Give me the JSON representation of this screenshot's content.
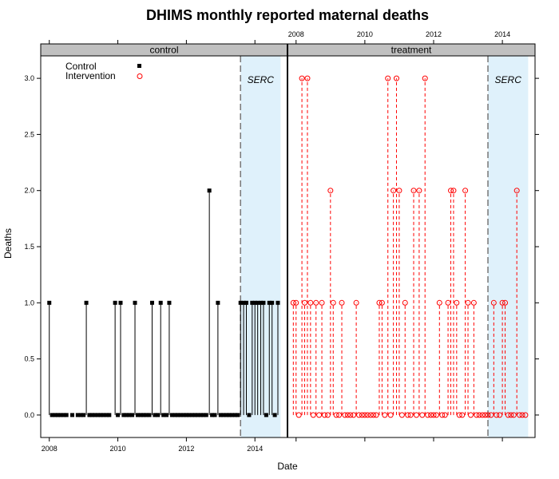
{
  "chart_data": {
    "type": "scatter",
    "title": "DHIMS monthly reported maternal deaths",
    "xlabel": "Date",
    "ylabel": "Deaths",
    "x_unit": "year",
    "xlim": [
      2007.75,
      2014.95
    ],
    "ylim": [
      -0.2,
      3.2
    ],
    "x_ticks": [
      2008,
      2010,
      2012,
      2014
    ],
    "x_tick_labels": [
      "2008",
      "2010",
      "2012",
      "2014"
    ],
    "y_ticks": [
      0,
      0.5,
      1,
      1.5,
      2,
      2.5,
      3
    ],
    "y_tick_labels": [
      "0.0",
      "0.5",
      "1.0",
      "1.5",
      "2.0",
      "2.5",
      "3.0"
    ],
    "legend": {
      "placement": "top-left",
      "entries": [
        {
          "label": "Control",
          "marker": "filled-square",
          "color": "#000000"
        },
        {
          "label": "Intervention",
          "marker": "open-circle",
          "color": "#ff0000"
        }
      ]
    },
    "annotation": {
      "label": "SERC",
      "start": 2013.58,
      "end": 2014.75,
      "shade_color": "#dff1fb",
      "line_color": "#777777"
    },
    "panels": [
      {
        "name": "control",
        "series": "Control",
        "color": "#000000",
        "marker": "square",
        "line_style": "solid",
        "x": [
          2008.0,
          2008.08,
          2008.17,
          2008.25,
          2008.33,
          2008.42,
          2008.5,
          2008.67,
          2008.83,
          2008.92,
          2009.0,
          2009.08,
          2009.17,
          2009.25,
          2009.33,
          2009.42,
          2009.5,
          2009.58,
          2009.67,
          2009.75,
          2009.92,
          2010.0,
          2010.08,
          2010.17,
          2010.25,
          2010.33,
          2010.42,
          2010.5,
          2010.58,
          2010.67,
          2010.75,
          2010.83,
          2010.92,
          2011.0,
          2011.08,
          2011.17,
          2011.25,
          2011.33,
          2011.42,
          2011.5,
          2011.58,
          2011.67,
          2011.75,
          2011.83,
          2011.92,
          2012.0,
          2012.08,
          2012.17,
          2012.25,
          2012.33,
          2012.42,
          2012.5,
          2012.58,
          2012.67,
          2012.75,
          2012.83,
          2012.92,
          2013.0,
          2013.08,
          2013.17,
          2013.25,
          2013.33,
          2013.42,
          2013.5,
          2013.58,
          2013.67,
          2013.75,
          2013.83,
          2013.92,
          2014.0,
          2014.08,
          2014.17,
          2014.25,
          2014.33,
          2014.42,
          2014.5,
          2014.58,
          2014.67
        ],
        "y": [
          1,
          0,
          0,
          0,
          0,
          0,
          0,
          0,
          0,
          0,
          0,
          1,
          0,
          0,
          0,
          0,
          0,
          0,
          0,
          0,
          1,
          0,
          1,
          0,
          0,
          0,
          0,
          1,
          0,
          0,
          0,
          0,
          0,
          1,
          0,
          0,
          1,
          0,
          0,
          1,
          0,
          0,
          0,
          0,
          0,
          0,
          0,
          0,
          0,
          0,
          0,
          0,
          0,
          2,
          0,
          0,
          1,
          0,
          0,
          0,
          0,
          0,
          0,
          0,
          1,
          1,
          1,
          0,
          1,
          1,
          1,
          1,
          1,
          0,
          1,
          1,
          0,
          1
        ]
      },
      {
        "name": "treatment",
        "series": "Intervention",
        "color": "#ff0000",
        "marker": "circle",
        "line_style": "dashed",
        "x": [
          2007.92,
          2008.0,
          2008.08,
          2008.17,
          2008.25,
          2008.33,
          2008.42,
          2008.5,
          2008.58,
          2008.67,
          2008.75,
          2008.83,
          2008.92,
          2009.0,
          2009.08,
          2009.17,
          2009.25,
          2009.33,
          2009.42,
          2009.5,
          2009.58,
          2009.67,
          2009.75,
          2009.83,
          2009.92,
          2010.0,
          2010.08,
          2010.17,
          2010.25,
          2010.33,
          2010.42,
          2010.5,
          2010.58,
          2010.67,
          2010.75,
          2010.83,
          2010.92,
          2011.0,
          2011.08,
          2011.17,
          2011.25,
          2011.33,
          2011.42,
          2011.5,
          2011.58,
          2011.67,
          2011.75,
          2011.83,
          2011.92,
          2012.0,
          2012.08,
          2012.17,
          2012.25,
          2012.33,
          2012.42,
          2012.5,
          2012.58,
          2012.67,
          2012.75,
          2012.83,
          2012.92,
          2013.0,
          2013.08,
          2013.17,
          2013.25,
          2013.33,
          2013.42,
          2013.5,
          2013.58,
          2013.67,
          2013.75,
          2013.83,
          2013.92,
          2014.0,
          2014.08,
          2014.17,
          2014.25,
          2014.33,
          2014.42,
          2014.5,
          2014.58,
          2014.67
        ],
        "y": [
          1,
          1,
          0,
          3,
          1,
          3,
          1,
          0,
          1,
          0,
          1,
          0,
          0,
          2,
          1,
          0,
          0,
          1,
          0,
          0,
          0,
          0,
          1,
          0,
          0,
          0,
          0,
          0,
          0,
          0,
          1,
          1,
          0,
          3,
          0,
          2,
          3,
          2,
          0,
          1,
          0,
          0,
          2,
          0,
          2,
          0,
          3,
          0,
          0,
          0,
          0,
          1,
          0,
          0,
          1,
          2,
          2,
          1,
          0,
          0,
          2,
          1,
          0,
          1,
          0,
          0,
          0,
          0,
          0,
          0,
          1,
          0,
          0,
          1,
          1,
          0,
          0,
          0,
          2,
          0,
          0,
          0
        ]
      }
    ]
  }
}
